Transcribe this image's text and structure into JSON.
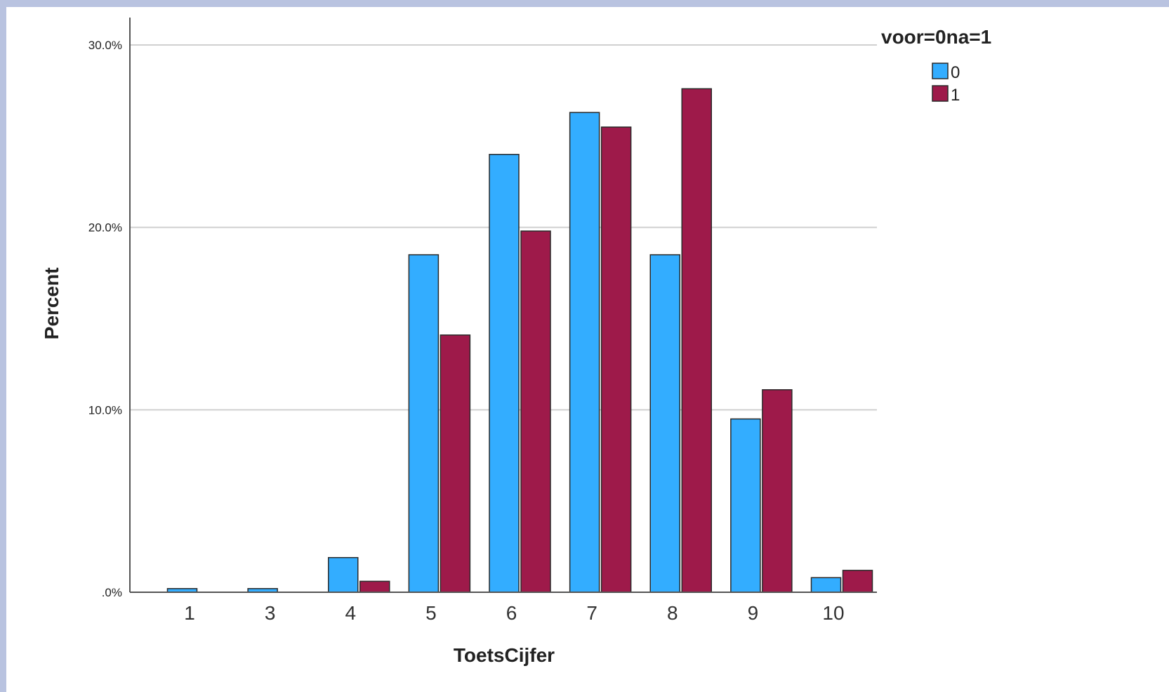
{
  "chart_data": {
    "type": "bar",
    "categories": [
      "1",
      "3",
      "4",
      "5",
      "6",
      "7",
      "8",
      "9",
      "10"
    ],
    "series": [
      {
        "name": "0",
        "color": "#33adff",
        "values": [
          0.2,
          0.2,
          1.9,
          18.5,
          24.0,
          26.3,
          18.5,
          9.5,
          0.8
        ]
      },
      {
        "name": "1",
        "color": "#9e1a4a",
        "values": [
          0.0,
          0.0,
          0.6,
          14.1,
          19.8,
          25.5,
          27.6,
          11.1,
          1.2
        ]
      }
    ],
    "xlabel": "ToetsCijfer",
    "ylabel": "Percent",
    "ylim": [
      0,
      30
    ],
    "yticks": [
      {
        "value": 0,
        "label": ".0%"
      },
      {
        "value": 10,
        "label": "10.0%"
      },
      {
        "value": 20,
        "label": "20.0%"
      },
      {
        "value": 30,
        "label": "30.0%"
      }
    ],
    "grid": true,
    "legend": {
      "title": "voor=0na=1",
      "position": "top-right"
    }
  }
}
